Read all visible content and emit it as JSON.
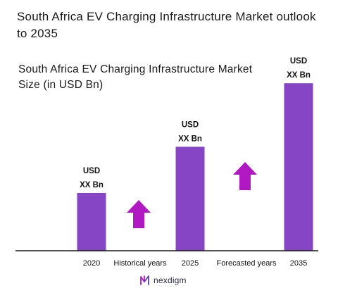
{
  "title": "South Africa EV Charging Infrastructure Market outlook to 2035",
  "subtitle": "South Africa EV Charging Infrastructure Market Size (in USD Bn)",
  "brand": {
    "name": "nexdigm",
    "logo_icon": "nexdigm-logo-icon"
  },
  "colors": {
    "bar": "#8645C4",
    "arrow": "#B019C2",
    "axis": "#1a1a1a"
  },
  "chart_data": {
    "type": "bar",
    "title": "South Africa EV Charging Infrastructure Market Size (in USD Bn)",
    "categories": [
      "2020",
      "2025",
      "2035"
    ],
    "values": [
      1,
      1.8,
      2.9
    ],
    "value_labels": [
      [
        "USD",
        "XX Bn"
      ],
      [
        "USD",
        "XX Bn"
      ],
      [
        "USD",
        "XX Bn"
      ]
    ],
    "period_labels": [
      "Historical years",
      "Forecasted years"
    ],
    "arrows": [
      "up-arrow-icon",
      "up-arrow-icon"
    ],
    "grid": false,
    "legend": "none"
  }
}
